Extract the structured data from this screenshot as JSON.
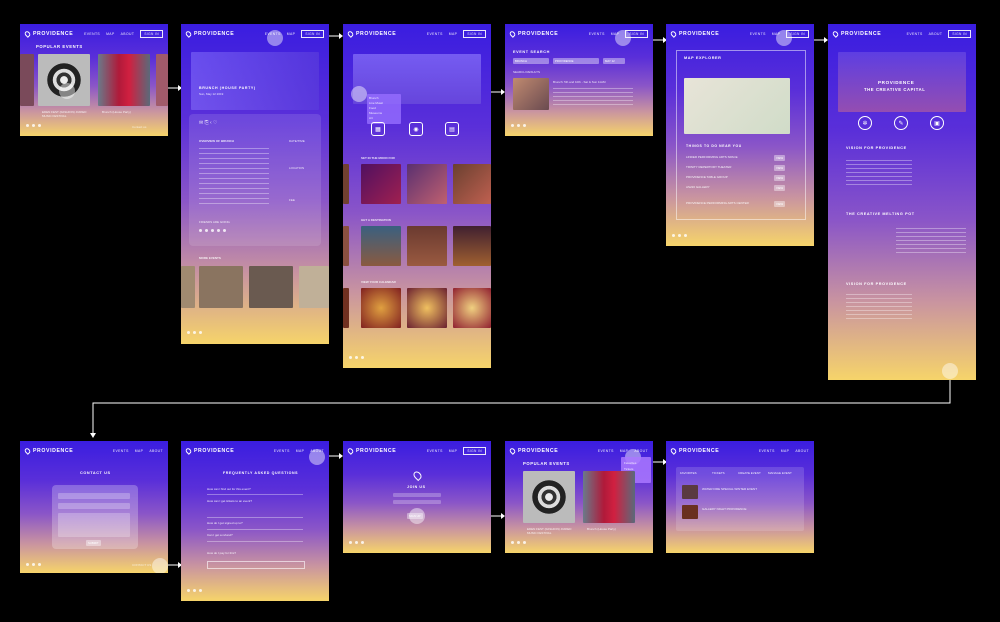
{
  "brand": "PROVIDENCE",
  "nav": {
    "events": "EVENTS",
    "map": "MAP",
    "about": "ABOUT",
    "signin": "SIGN IN"
  },
  "screens": {
    "home": {
      "title": "POPULAR EVENTS",
      "cap1": "EDEN FEST (FASHION) JURIED MUSIC FESTIVAL",
      "cap2": "Brunch (House Party)",
      "footer": "Contact us"
    },
    "detail": {
      "title": "BRUNCH (HOUSE PARTY)",
      "sub": "Sun, May 12 2019",
      "overview": "OVERVIEW OF BRUNCH",
      "dateLabel": "DATE/TIME",
      "locLabel": "LOCATION",
      "feeLabel": "FEE",
      "friendsLabel": "FRIENDS ARE GOING",
      "more": "MORE EVENTS"
    },
    "events": {
      "searchLabel": "EVENT SEARCH",
      "tab": "EVENTS",
      "menu": [
        "Brunch",
        "Live Music",
        "Food",
        "Museums",
        "Art"
      ],
      "chips": [
        "EVENT NAME",
        "LOCATION",
        "DATE"
      ],
      "icons": [
        "BROWSE",
        "LOCATION",
        "DATE"
      ],
      "mood": "SET IN THE MOOD FOR",
      "dest": "GET A DESTINATION",
      "cal": "VIEW YOUR CALENDAR"
    },
    "search": {
      "title": "EVENT SEARCH",
      "chips": [
        "BRUNCH",
        "PROVIDENCE",
        "MAY 12"
      ],
      "results": "SEARCH RESULTS",
      "hit": "Brunch: 5th and 10th - Sat & Sun 11AM"
    },
    "map": {
      "title": "MAP EXPLORER",
      "near": "THINGS TO DO NEAR YOU",
      "list": [
        "LINDER PERFORMING ARTS SPACE",
        "TRINITY REPERTORY THEATER",
        "PROVIDENCE TABLE GROUP",
        "AS220 GALLERY",
        "PROVIDENCE PERFORMING ARTS CENTER"
      ],
      "btn": "VIEW"
    },
    "about": {
      "hero": "PROVIDENCE",
      "hero2": "THE CREATIVE CAPITAL",
      "icons": [
        "VISION",
        "CREATE",
        "EXPERIENCE"
      ],
      "h1": "VISION FOR PROVIDENCE",
      "h2": "THE CREATIVE MELTING POT",
      "h3": "VISION FOR PROVIDENCE"
    },
    "contact": {
      "title": "CONTACT US",
      "submit": "SUBMIT",
      "footer": "CONTACT US"
    },
    "faq": {
      "title": "FREQUENTLY ASKED QUESTIONS",
      "q": [
        "How can I find out for this event?",
        "How can I get tickets to an event?",
        "How do I get signed up to?",
        "Can I get a refund?",
        "How do I pay for this?"
      ]
    },
    "join": {
      "title": "JOIN US",
      "btn": "SIGN UP"
    },
    "home2": {
      "title": "POPULAR EVENTS",
      "menu": [
        "Favorites",
        "Tickets",
        "Settings"
      ]
    },
    "profile": {
      "tabs": [
        "FAVORITES",
        "TICKETS",
        "CREATE EVENT",
        "MANAGE EVENT"
      ],
      "items": [
        "WATER FIRE SPECIAL WINTER EVENT",
        "GALLERY NIGHT PROVIDENCE"
      ]
    }
  }
}
